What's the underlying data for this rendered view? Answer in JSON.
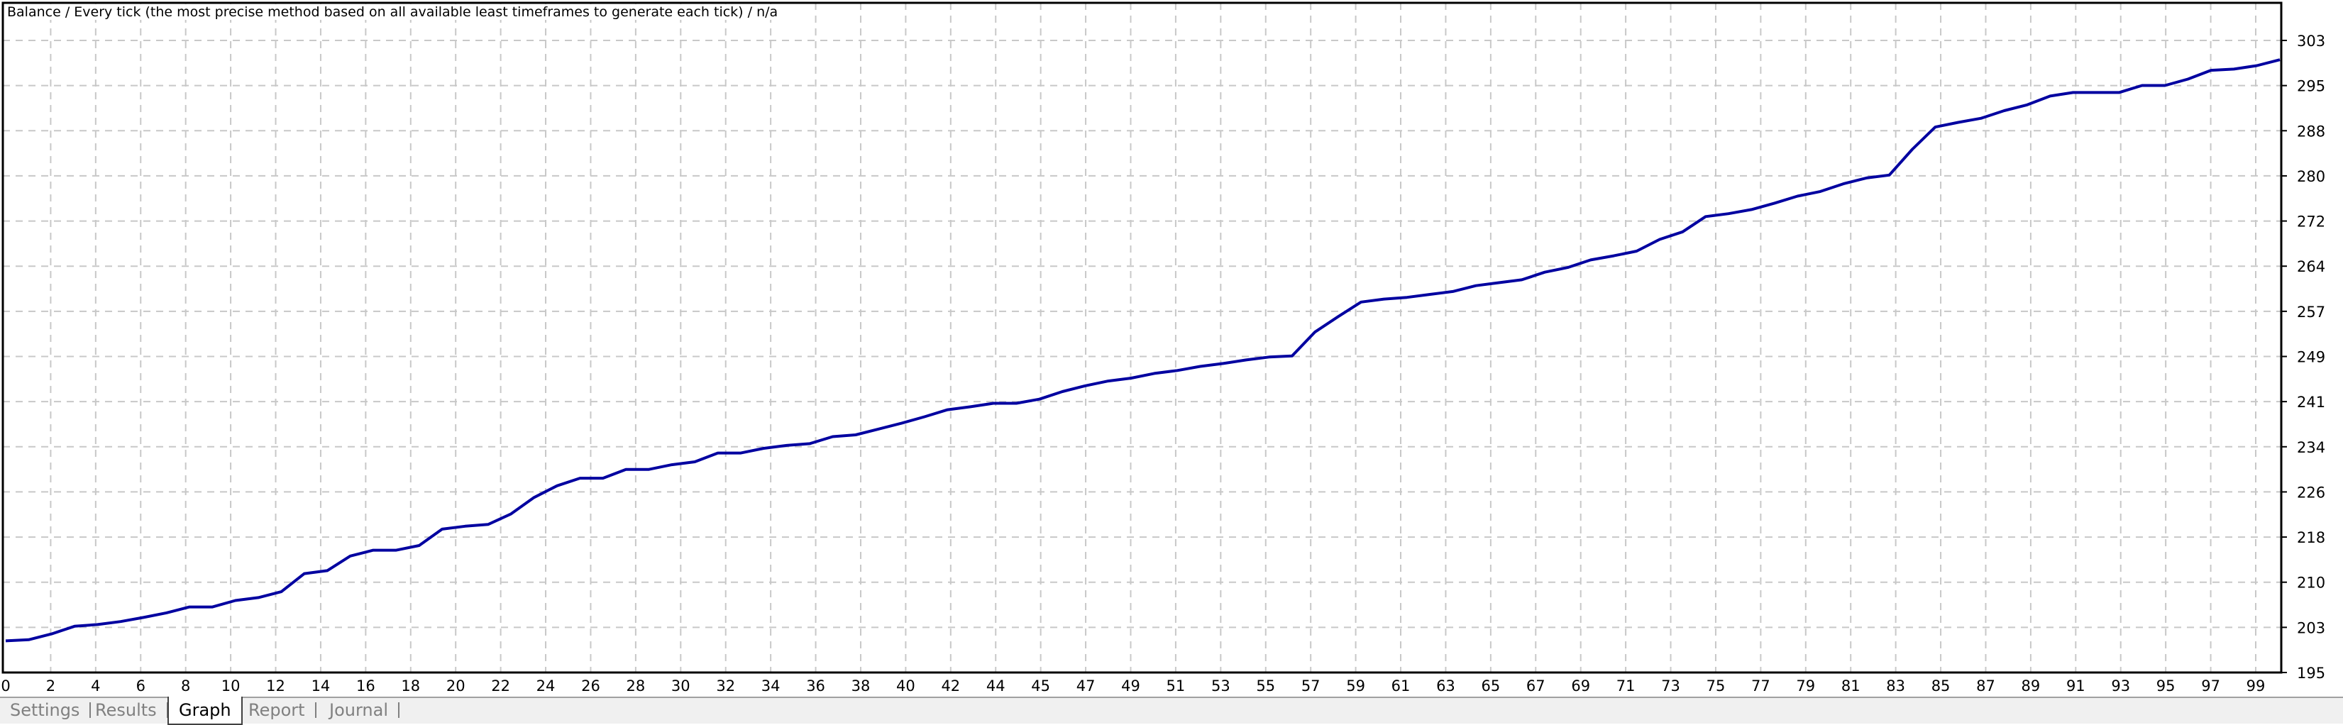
{
  "chart_data": {
    "type": "line",
    "title": "Balance / Every tick (the most precise method based on all available least timeframes to generate each tick) / n/a",
    "xlabel": "",
    "ylabel": "",
    "ylim": [
      195,
      303
    ],
    "grid": true,
    "y_axis_position": "right",
    "line_color": "#0000a0",
    "y_ticks": [
      "303",
      "295",
      "288",
      "280",
      "272",
      "264",
      "257",
      "249",
      "241",
      "234",
      "226",
      "218",
      "210",
      "203",
      "195"
    ],
    "x_ticks": [
      "0",
      "2",
      "4",
      "6",
      "8",
      "10",
      "12",
      "14",
      "16",
      "18",
      "20",
      "22",
      "24",
      "26",
      "28",
      "30",
      "32",
      "34",
      "36",
      "38",
      "40",
      "42",
      "44",
      "45",
      "47",
      "49",
      "51",
      "53",
      "55",
      "57",
      "59",
      "61",
      "63",
      "65",
      "67",
      "69",
      "71",
      "73",
      "75",
      "77",
      "79",
      "81",
      "83",
      "85",
      "87",
      "89",
      "91",
      "93",
      "95",
      "97",
      "99"
    ],
    "series": [
      {
        "values": [
          200.4,
          200.6,
          201.6,
          202.9,
          203.2,
          203.7,
          204.4,
          205.2,
          206.2,
          206.2,
          207.3,
          207.8,
          208.8,
          211.9,
          212.4,
          214.9,
          215.9,
          215.9,
          216.7,
          219.5,
          220.0,
          220.3,
          222.1,
          224.9,
          226.9,
          228.2,
          228.2,
          229.7,
          229.7,
          230.5,
          231.0,
          232.5,
          232.5,
          233.3,
          233.8,
          234.1,
          235.3,
          235.6,
          236.6,
          237.6,
          238.7,
          239.9,
          240.4,
          241.0,
          241.0,
          241.7,
          243.0,
          244.0,
          244.8,
          245.3,
          246.1,
          246.6,
          247.3,
          247.8,
          248.4,
          248.9,
          249.1,
          253.2,
          255.8,
          258.3,
          258.8,
          259.1,
          259.6,
          260.1,
          261.1,
          261.6,
          262.1,
          263.4,
          264.2,
          265.5,
          266.2,
          267.0,
          269.0,
          270.3,
          272.9,
          273.4,
          274.1,
          275.2,
          276.4,
          277.2,
          278.5,
          279.5,
          280.0,
          284.4,
          288.2,
          289.0,
          289.7,
          291.0,
          292.0,
          293.5,
          294.1,
          294.1,
          294.1,
          295.3,
          295.3,
          296.4,
          297.9,
          298.1,
          298.7,
          299.7
        ]
      }
    ]
  },
  "tabs": [
    {
      "label": "Settings",
      "active": false
    },
    {
      "label": "Results",
      "active": false
    },
    {
      "label": "Graph",
      "active": true
    },
    {
      "label": "Report",
      "active": false
    },
    {
      "label": "Journal",
      "active": false
    }
  ]
}
